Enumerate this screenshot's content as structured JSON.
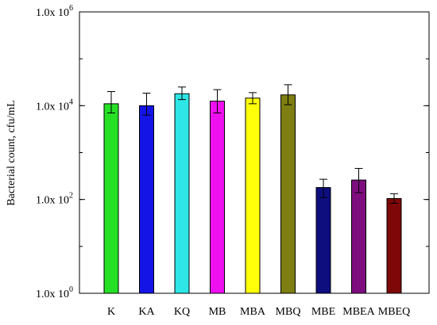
{
  "chart_data": {
    "type": "bar",
    "ylabel": "Bacterial count, cfu/mL",
    "yscale": "log",
    "ylim": [
      1,
      1000000
    ],
    "y_ticks": [
      {
        "value": 1,
        "mantissa": "1.0x 10",
        "exponent": "0"
      },
      {
        "value": 100,
        "mantissa": "1.0x 10",
        "exponent": "2"
      },
      {
        "value": 10000,
        "mantissa": "1.0x 10",
        "exponent": "4"
      },
      {
        "value": 1000000,
        "mantissa": "1.0x 10",
        "exponent": "6"
      }
    ],
    "grid": false,
    "categories": [
      "K",
      "KA",
      "KQ",
      "MB",
      "MBA",
      "MBQ",
      "MBE",
      "MBEA",
      "MBEQ"
    ],
    "values": [
      11000,
      10000,
      18000,
      12500,
      14500,
      17000,
      180,
      260,
      105
    ],
    "error_low": [
      4000,
      3700,
      4500,
      5500,
      3500,
      6500,
      70,
      120,
      22
    ],
    "error_high": [
      9000,
      8500,
      7000,
      9500,
      4500,
      11000,
      90,
      200,
      28
    ],
    "colors": [
      "#26e026",
      "#1414e6",
      "#2ee6e6",
      "#ee10ee",
      "#ffff0a",
      "#7e7e12",
      "#0e0e7e",
      "#7e0e7e",
      "#7e0808"
    ]
  }
}
